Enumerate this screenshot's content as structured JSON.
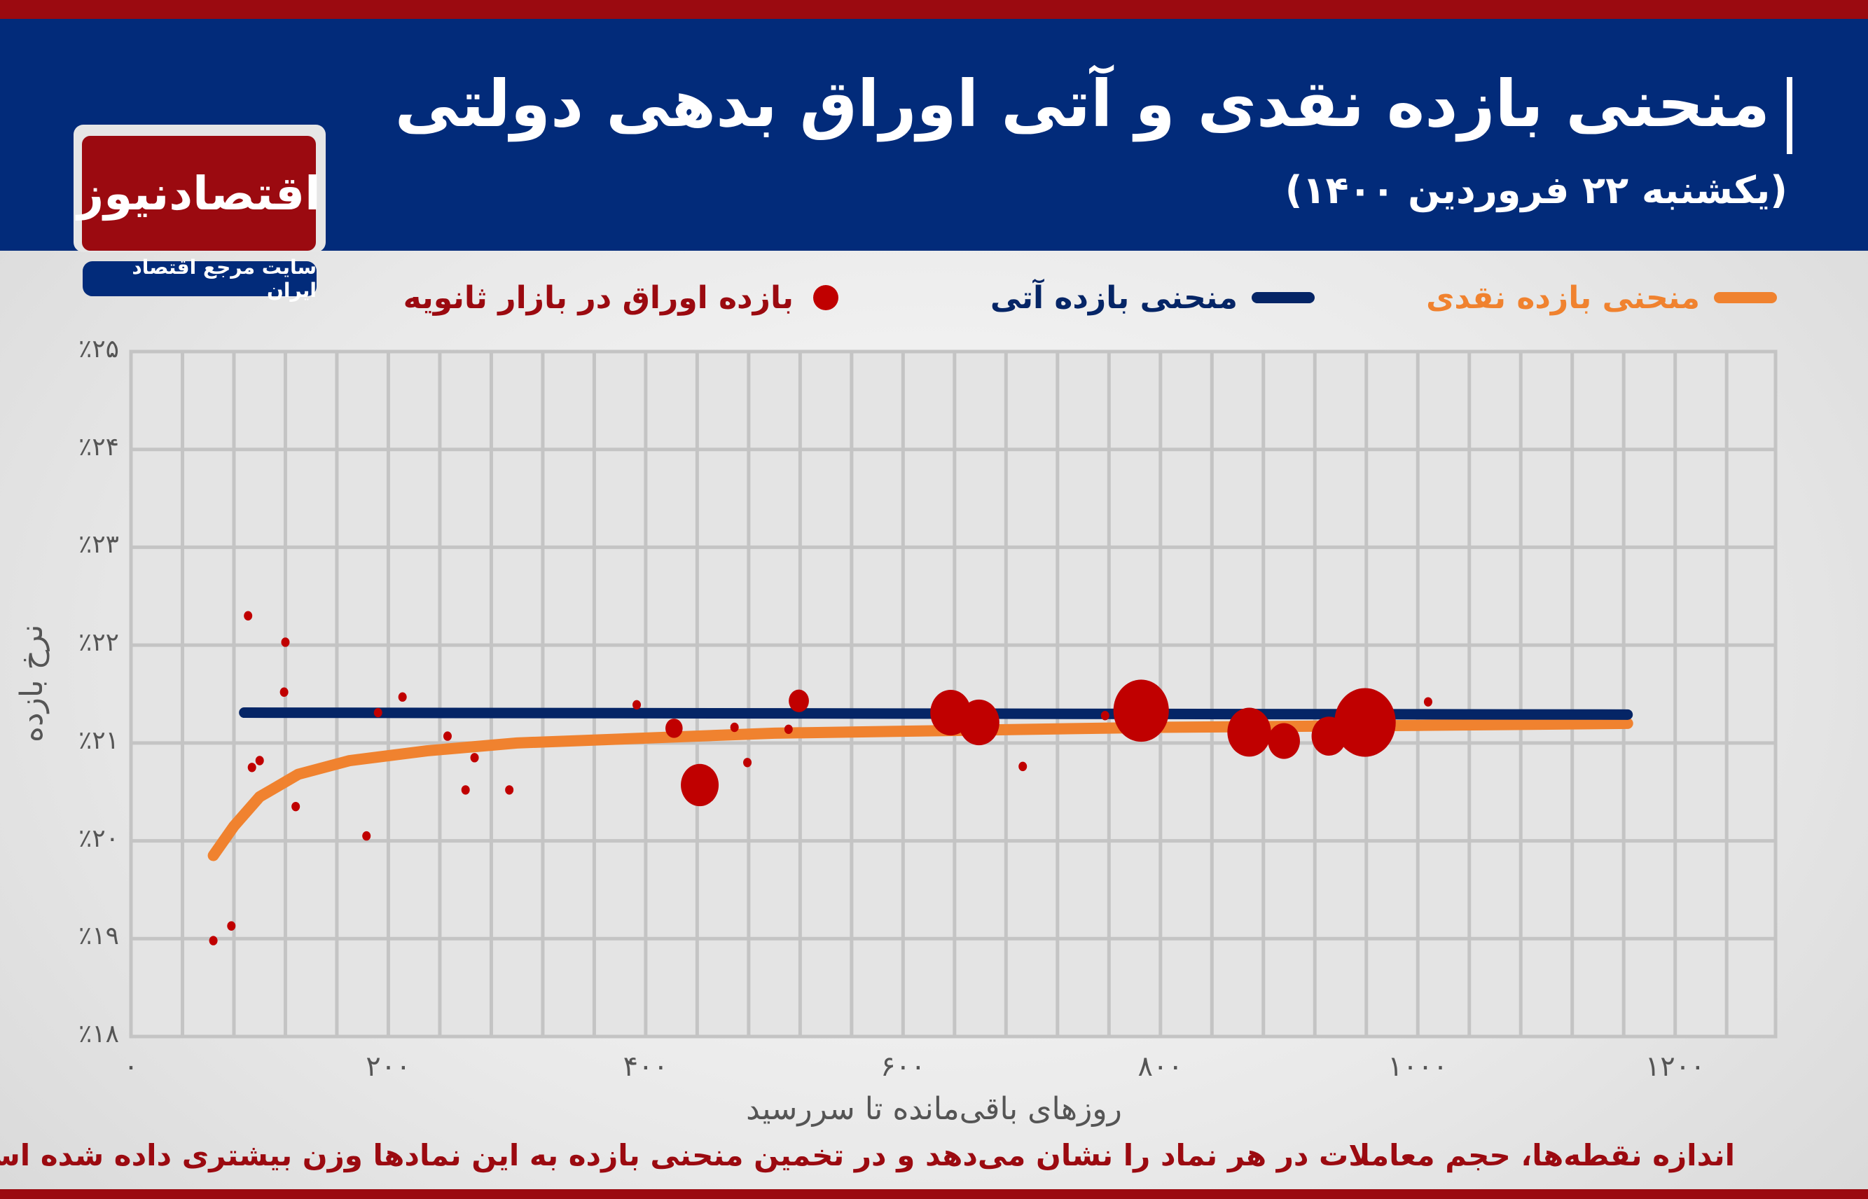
{
  "header": {
    "title": "منحنی بازده نقدی و آتی اوراق بدهی دولتی",
    "subtitle": "(یکشنبه ۲۲ فروردین ۱۴۰۰)"
  },
  "logo": {
    "text": "اقتصادنیوز",
    "tagline": "سایت مرجع اقتصاد ایران"
  },
  "footnote": "اندازه نقطه‌ها، حجم معاملات در هر نماد را نشان می‌دهد و در تخمین منحنی بازده به این نمادها وزن بیشتری داده شده است",
  "colors": {
    "spot": "#f0822f",
    "forward": "#052566",
    "bonds": "#c00000",
    "brand_red": "#9b0a10",
    "brand_blue": "#022b7a"
  },
  "chart_data": {
    "type": "scatter",
    "xlabel": "روزهای باقی‌مانده تا سررسید",
    "ylabel": "نرخ بازده",
    "xlim": [
      0,
      1278
    ],
    "ylim": [
      18,
      25
    ],
    "grid": true,
    "legend_position": "top",
    "x_ticks": [
      0,
      200,
      400,
      600,
      800,
      1000,
      1200
    ],
    "x_tick_labels": [
      "۰",
      "۲۰۰",
      "۴۰۰",
      "۶۰۰",
      "۸۰۰",
      "۱۰۰۰",
      "۱۲۰۰"
    ],
    "y_ticks": [
      18,
      19,
      20,
      21,
      22,
      23,
      24,
      25
    ],
    "y_tick_labels": [
      "٪۱۸",
      "٪۱۹",
      "٪۲۰",
      "٪۲۱",
      "٪۲۲",
      "٪۲۳",
      "٪۲۴",
      "٪۲۵"
    ],
    "series": [
      {
        "name": "منحنی بازده نقدی",
        "kind": "line",
        "color": "#f0822f",
        "x": [
          64,
          80,
          100,
          130,
          170,
          230,
          300,
          400,
          500,
          650,
          800,
          1000,
          1163
        ],
        "y": [
          19.85,
          20.15,
          20.45,
          20.68,
          20.82,
          20.92,
          21.0,
          21.05,
          21.1,
          21.13,
          21.16,
          21.18,
          21.2
        ]
      },
      {
        "name": "منحنی بازده آتی",
        "kind": "line",
        "color": "#052566",
        "x": [
          88,
          1163
        ],
        "y": [
          21.31,
          21.29
        ]
      },
      {
        "name": "بازده اوراق در بازار ثانویه",
        "kind": "bubble",
        "color": "#c00000",
        "points": [
          {
            "x": 91,
            "y": 22.3,
            "size": 1
          },
          {
            "x": 120,
            "y": 22.03,
            "size": 1
          },
          {
            "x": 119,
            "y": 21.52,
            "size": 1
          },
          {
            "x": 94,
            "y": 20.75,
            "size": 1
          },
          {
            "x": 100,
            "y": 20.82,
            "size": 1
          },
          {
            "x": 128,
            "y": 20.35,
            "size": 1
          },
          {
            "x": 64,
            "y": 18.98,
            "size": 1
          },
          {
            "x": 78,
            "y": 19.13,
            "size": 1
          },
          {
            "x": 183,
            "y": 20.05,
            "size": 1
          },
          {
            "x": 192,
            "y": 21.31,
            "size": 1
          },
          {
            "x": 211,
            "y": 21.47,
            "size": 1
          },
          {
            "x": 246,
            "y": 21.07,
            "size": 1
          },
          {
            "x": 267,
            "y": 20.85,
            "size": 1
          },
          {
            "x": 260,
            "y": 20.52,
            "size": 1
          },
          {
            "x": 294,
            "y": 20.52,
            "size": 1
          },
          {
            "x": 393,
            "y": 21.39,
            "size": 1
          },
          {
            "x": 422,
            "y": 21.15,
            "size": 1.5
          },
          {
            "x": 442,
            "y": 20.57,
            "size": 5
          },
          {
            "x": 469,
            "y": 21.16,
            "size": 1
          },
          {
            "x": 479,
            "y": 20.8,
            "size": 1
          },
          {
            "x": 511,
            "y": 21.14,
            "size": 1
          },
          {
            "x": 519,
            "y": 21.43,
            "size": 2
          },
          {
            "x": 637,
            "y": 21.31,
            "size": 5.5
          },
          {
            "x": 659,
            "y": 21.21,
            "size": 5.5
          },
          {
            "x": 693,
            "y": 20.76,
            "size": 1
          },
          {
            "x": 757,
            "y": 21.28,
            "size": 1
          },
          {
            "x": 785,
            "y": 21.33,
            "size": 8
          },
          {
            "x": 869,
            "y": 21.11,
            "size": 6
          },
          {
            "x": 896,
            "y": 21.02,
            "size": 4
          },
          {
            "x": 931,
            "y": 21.07,
            "size": 4.5
          },
          {
            "x": 959,
            "y": 21.21,
            "size": 9
          },
          {
            "x": 1008,
            "y": 21.42,
            "size": 1
          }
        ]
      }
    ]
  }
}
